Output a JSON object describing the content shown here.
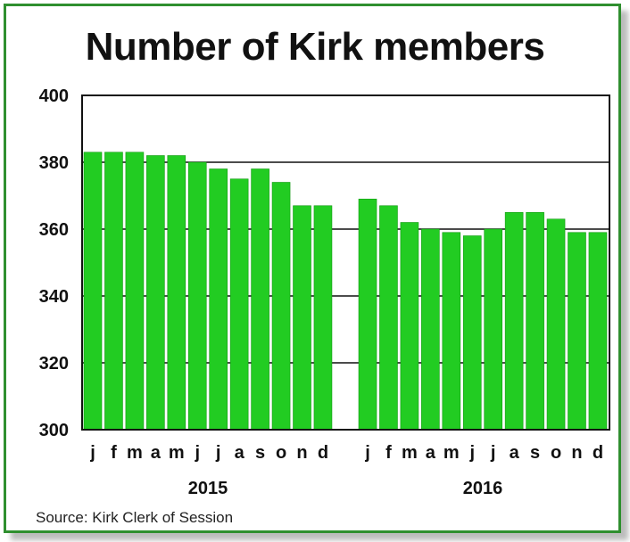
{
  "chart_data": {
    "type": "bar",
    "title": "Number of Kirk members",
    "source": "Source: Kirk Clerk of Session",
    "ylim": [
      300,
      400
    ],
    "yticks": [
      "300",
      "320",
      "340",
      "360",
      "380",
      "400"
    ],
    "grid": true,
    "bar_color": "#22cc22",
    "groups": [
      {
        "year": "2015",
        "categories": [
          "j",
          "f",
          "m",
          "a",
          "m",
          "j",
          "j",
          "a",
          "s",
          "o",
          "n",
          "d"
        ],
        "values": [
          383,
          383,
          383,
          382,
          382,
          380,
          378,
          375,
          378,
          374,
          367,
          367
        ]
      },
      {
        "year": "2016",
        "categories": [
          "j",
          "f",
          "m",
          "a",
          "m",
          "j",
          "j",
          "a",
          "s",
          "o",
          "n",
          "d"
        ],
        "values": [
          369,
          367,
          362,
          360,
          359,
          358,
          360,
          365,
          365,
          363,
          359,
          359
        ]
      }
    ]
  }
}
